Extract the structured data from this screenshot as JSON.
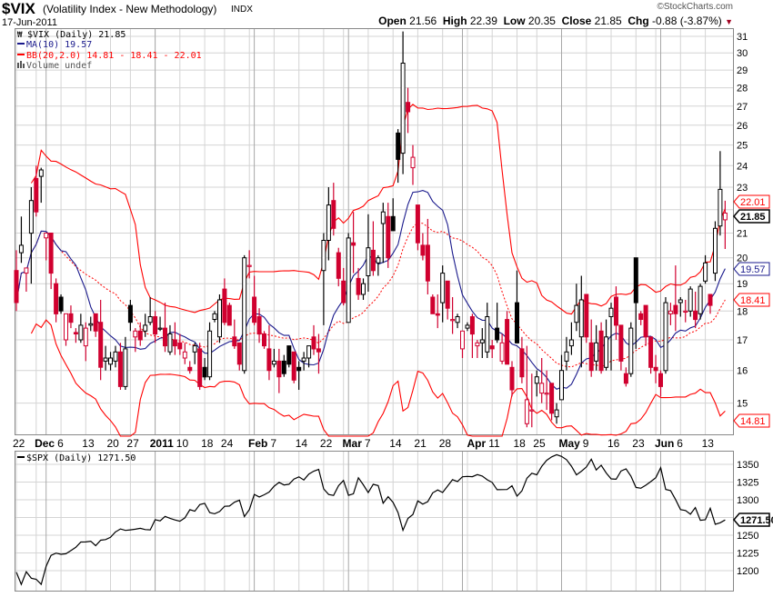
{
  "header": {
    "symbol": "$VIX",
    "description": "(Volatility Index - New Methodology)",
    "exchange": "INDX",
    "date": "17-Jun-2011",
    "copyright": "©StockCharts.com",
    "open_label": "Open",
    "open": "21.56",
    "high_label": "High",
    "high": "22.39",
    "low_label": "Low",
    "low": "20.35",
    "close_label": "Close",
    "close": "21.85",
    "chg_label": "Chg",
    "chg": "-0.88 (-3.87%)",
    "chg_arrow": "▼"
  },
  "legend": {
    "price": "$VIX (Daily) 21.85",
    "ma": "MA(10) 19.57",
    "bb": "BB(20,2.0) 14.81 - 18.41 - 22.01",
    "volume": "Volume undef",
    "spx": "$SPX (Daily) 1271.50"
  },
  "tags": {
    "close": "21.85",
    "bb_upper": "22.01",
    "ma": "19.57",
    "bb_mid": "18.41",
    "bb_lower": "14.81",
    "spx_close": "1271.50"
  },
  "colors": {
    "up": "#000000",
    "down": "#d0002f",
    "ma": "#1a1a8c",
    "bb": "#ff0000",
    "grid": "#d4d4d4",
    "grid_month": "#a8a8a8"
  },
  "chart_data": [
    {
      "type": "candlestick",
      "title": "$VIX (Daily)",
      "scale": "log",
      "ylim": [
        14.1,
        31.5
      ],
      "y_ticks": [
        31,
        30,
        29,
        28,
        27,
        26,
        25,
        24,
        23,
        21,
        20,
        19,
        18,
        17,
        16,
        15
      ],
      "y_grid": [
        15,
        16,
        17,
        18,
        19,
        20,
        21,
        22,
        23,
        24,
        25,
        26,
        27,
        28,
        29,
        30,
        31
      ],
      "indicators": {
        "ma_period": 10,
        "bb_period": 20,
        "bb_stddev": 2.0
      },
      "x_labels": [
        {
          "i": 0,
          "t": "22"
        },
        {
          "i": 6,
          "t": "Dec",
          "b": true
        },
        {
          "i": 9,
          "t": "6"
        },
        {
          "i": 14,
          "t": "13"
        },
        {
          "i": 19,
          "t": "20"
        },
        {
          "i": 23,
          "t": "27"
        },
        {
          "i": 28,
          "t": "2011",
          "b": true
        },
        {
          "i": 33,
          "t": "10"
        },
        {
          "i": 38,
          "t": "18"
        },
        {
          "i": 42,
          "t": "24"
        },
        {
          "i": 48,
          "t": "Feb",
          "b": true
        },
        {
          "i": 52,
          "t": "7"
        },
        {
          "i": 57,
          "t": "14"
        },
        {
          "i": 62,
          "t": "22"
        },
        {
          "i": 67,
          "t": "Mar",
          "b": true
        },
        {
          "i": 71,
          "t": "7"
        },
        {
          "i": 76,
          "t": "14"
        },
        {
          "i": 81,
          "t": "21"
        },
        {
          "i": 86,
          "t": "28"
        },
        {
          "i": 90,
          "t": "Apr",
          "b": true
        },
        {
          "i": 96,
          "t": "11"
        },
        {
          "i": 101,
          "t": "18"
        },
        {
          "i": 105,
          "t": "25"
        },
        {
          "i": 110,
          "t": "May",
          "b": true
        },
        {
          "i": 115,
          "t": "9"
        },
        {
          "i": 120,
          "t": "16"
        },
        {
          "i": 125,
          "t": "23"
        },
        {
          "i": 130,
          "t": "Jun",
          "b": true
        },
        {
          "i": 134,
          "t": "6"
        },
        {
          "i": 139,
          "t": "13"
        }
      ],
      "week_starts": [
        0,
        4,
        9,
        14,
        19,
        23,
        28,
        33,
        38,
        42,
        47,
        52,
        57,
        62,
        66,
        71,
        76,
        81,
        86,
        91,
        96,
        101,
        105,
        110,
        115,
        120,
        125,
        129,
        134,
        139
      ],
      "month_starts": [
        6,
        28,
        48,
        67,
        90,
        110,
        130
      ],
      "candles_ohlc": [
        [
          19.5,
          20.3,
          18.0,
          18.3
        ],
        [
          20.2,
          21.7,
          19.8,
          20.5
        ],
        [
          19.4,
          19.6,
          18.7,
          19.6
        ],
        [
          21.0,
          23.0,
          19.0,
          22.4
        ],
        [
          23.4,
          24.0,
          21.7,
          21.9
        ],
        [
          23.5,
          23.9,
          22.3,
          23.8
        ],
        [
          20.8,
          21.0,
          19.9,
          21.0
        ],
        [
          21.0,
          21.0,
          18.8,
          19.4
        ],
        [
          19.0,
          19.2,
          17.6,
          17.9
        ],
        [
          18.5,
          18.6,
          17.9,
          18.0
        ],
        [
          17.0,
          17.9,
          16.8,
          17.9
        ],
        [
          17.9,
          18.2,
          17.4,
          17.6
        ],
        [
          17.25,
          17.4,
          16.9,
          17.2
        ],
        [
          17.0,
          17.9,
          16.9,
          17.5
        ],
        [
          16.8,
          17.6,
          16.3,
          17.4
        ],
        [
          17.5,
          17.8,
          17.3,
          17.55
        ],
        [
          17.9,
          17.9,
          17.1,
          17.3
        ],
        [
          17.6,
          18.4,
          15.7,
          16.1
        ],
        [
          16.3,
          16.8,
          16.0,
          16.4
        ],
        [
          16.2,
          16.6,
          16.0,
          16.4
        ],
        [
          16.3,
          16.8,
          16.1,
          16.6
        ],
        [
          16.6,
          16.9,
          15.4,
          15.5
        ],
        [
          15.5,
          17.1,
          15.4,
          16.7
        ],
        [
          18.2,
          18.4,
          17.3,
          17.6
        ],
        [
          17.1,
          17.4,
          16.6,
          17.3
        ],
        [
          17.3,
          17.6,
          16.8,
          17.0
        ],
        [
          17.3,
          17.9,
          17.1,
          17.5
        ],
        [
          17.6,
          18.5,
          17.5,
          17.8
        ],
        [
          17.8,
          18.0,
          16.9,
          17.2
        ],
        [
          17.4,
          17.8,
          17.3,
          17.4
        ],
        [
          17.4,
          18.3,
          16.6,
          16.8
        ],
        [
          16.6,
          17.5,
          16.5,
          17.2
        ],
        [
          17.0,
          17.6,
          16.5,
          16.8
        ],
        [
          16.9,
          17.2,
          16.5,
          16.7
        ],
        [
          16.4,
          16.9,
          16.2,
          16.6
        ],
        [
          16.1,
          16.3,
          15.9,
          16.0
        ],
        [
          16.6,
          16.9,
          16.2,
          16.8
        ],
        [
          16.7,
          16.9,
          15.4,
          15.5
        ],
        [
          16.1,
          16.4,
          15.7,
          15.8
        ],
        [
          15.8,
          17.6,
          15.7,
          17.3
        ],
        [
          17.7,
          18.0,
          17.6,
          17.9
        ],
        [
          17.1,
          18.6,
          16.9,
          18.4
        ],
        [
          18.8,
          19.2,
          17.5,
          17.6
        ],
        [
          18.2,
          18.3,
          17.5,
          17.5
        ],
        [
          17.1,
          17.7,
          16.7,
          16.8
        ],
        [
          16.9,
          16.9,
          16.0,
          16.2
        ],
        [
          16.0,
          20.1,
          15.9,
          20.0
        ],
        [
          19.7,
          20.3,
          19.2,
          19.7
        ],
        [
          18.5,
          19.3,
          17.5,
          17.6
        ],
        [
          17.8,
          18.1,
          16.9,
          17.2
        ],
        [
          17.2,
          17.3,
          16.7,
          16.8
        ],
        [
          16.7,
          17.5,
          15.7,
          16.0
        ],
        [
          16.2,
          16.7,
          16.1,
          16.3
        ],
        [
          16.3,
          16.7,
          15.3,
          15.8
        ],
        [
          16.3,
          16.5,
          15.8,
          15.9
        ],
        [
          16.8,
          16.8,
          16.1,
          16.2
        ],
        [
          16.6,
          16.6,
          15.6,
          15.7
        ],
        [
          16.1,
          16.3,
          15.4,
          16.0
        ],
        [
          16.3,
          16.6,
          16.0,
          16.4
        ],
        [
          16.4,
          16.8,
          16.1,
          16.8
        ],
        [
          17.1,
          17.5,
          16.5,
          16.7
        ],
        [
          16.7,
          17.2,
          15.9,
          16.6
        ],
        [
          19.5,
          21.0,
          17.5,
          20.7
        ],
        [
          20.7,
          23.0,
          19.9,
          22.2
        ],
        [
          22.4,
          23.2,
          20.9,
          21.2
        ],
        [
          20.2,
          20.4,
          18.9,
          19.2
        ],
        [
          19.1,
          19.6,
          18.2,
          18.3
        ],
        [
          17.6,
          21.0,
          17.6,
          20.8
        ],
        [
          20.6,
          21.9,
          19.4,
          20.5
        ],
        [
          19.2,
          19.6,
          18.4,
          18.6
        ],
        [
          18.6,
          19.2,
          18.4,
          19.0
        ],
        [
          19.3,
          21.8,
          18.7,
          20.4
        ],
        [
          20.3,
          21.5,
          19.3,
          19.5
        ],
        [
          19.8,
          20.1,
          19.3,
          20.0
        ],
        [
          21.4,
          22.3,
          19.8,
          21.9
        ],
        [
          21.7,
          22.3,
          19.6,
          20.0
        ],
        [
          21.7,
          22.5,
          21.1,
          21.1
        ],
        [
          25.6,
          25.8,
          23.2,
          24.3
        ],
        [
          24.6,
          31.3,
          23.6,
          29.4
        ],
        [
          27.2,
          28.0,
          25.6,
          26.7
        ],
        [
          23.9,
          25.0,
          23.1,
          24.4
        ],
        [
          22.2,
          22.2,
          20.3,
          20.6
        ],
        [
          20.5,
          21.0,
          19.9,
          20.1
        ],
        [
          20.5,
          21.6,
          18.6,
          19.1
        ],
        [
          18.5,
          18.6,
          17.9,
          17.9
        ],
        [
          17.9,
          18.6,
          17.4,
          17.85
        ],
        [
          18.3,
          19.7,
          17.6,
          19.4
        ],
        [
          19.1,
          19.1,
          17.7,
          18.1
        ],
        [
          17.7,
          18.5,
          17.2,
          17.7
        ],
        [
          17.6,
          17.9,
          17.4,
          17.8
        ],
        [
          16.7,
          17.3,
          16.4,
          17.3
        ],
        [
          17.4,
          17.6,
          17.3,
          17.5
        ],
        [
          17.8,
          17.9,
          16.4,
          17.2
        ],
        [
          16.8,
          17.0,
          16.4,
          16.9
        ],
        [
          16.9,
          17.4,
          16.4,
          17.0
        ],
        [
          16.6,
          18.3,
          16.4,
          17.8
        ],
        [
          16.8,
          17.0,
          16.4,
          16.7
        ],
        [
          17.4,
          18.3,
          16.9,
          17.0
        ],
        [
          16.3,
          17.2,
          16.2,
          16.9
        ],
        [
          17.7,
          18.0,
          16.2,
          16.2
        ],
        [
          16.1,
          16.3,
          15.2,
          15.4
        ],
        [
          18.3,
          19.5,
          16.9,
          16.9
        ],
        [
          16.7,
          17.1,
          15.6,
          15.8
        ],
        [
          14.4,
          16.8,
          14.3,
          15.1
        ],
        [
          14.8,
          15.9,
          14.3,
          14.8
        ],
        [
          15.6,
          16.0,
          15.2,
          15.8
        ],
        [
          15.3,
          16.4,
          15.0,
          15.6
        ],
        [
          15.3,
          16.0,
          14.8,
          15.3
        ],
        [
          15.6,
          15.6,
          14.5,
          14.7
        ],
        [
          14.6,
          15.0,
          14.4,
          14.8
        ],
        [
          15.1,
          16.5,
          15.1,
          16.0
        ],
        [
          16.3,
          17.1,
          16.0,
          16.6
        ],
        [
          16.8,
          17.6,
          16.5,
          17.0
        ],
        [
          17.6,
          19.0,
          17.3,
          18.2
        ],
        [
          17.1,
          19.3,
          16.1,
          18.4
        ],
        [
          18.6,
          18.6,
          16.9,
          17.1
        ],
        [
          16.9,
          17.7,
          15.8,
          16.0
        ],
        [
          16.3,
          17.5,
          16.0,
          16.9
        ],
        [
          17.3,
          17.6,
          15.9,
          16.0
        ],
        [
          16.1,
          17.7,
          16.0,
          17.1
        ],
        [
          17.8,
          18.3,
          16.0,
          18.1
        ],
        [
          18.5,
          18.9,
          17.0,
          17.5
        ],
        [
          17.5,
          17.5,
          16.0,
          16.3
        ],
        [
          15.9,
          16.1,
          15.5,
          15.6
        ],
        [
          15.9,
          17.6,
          15.8,
          17.4
        ],
        [
          20.0,
          20.0,
          16.7,
          18.3
        ],
        [
          17.9,
          18.0,
          17.5,
          17.7
        ],
        [
          18.2,
          18.2,
          16.8,
          17.1
        ],
        [
          17.1,
          17.1,
          15.9,
          16.1
        ],
        [
          16.1,
          16.5,
          15.6,
          16.0
        ],
        [
          15.9,
          16.0,
          15.2,
          15.5
        ],
        [
          16.0,
          18.5,
          15.9,
          18.3
        ],
        [
          17.9,
          18.3,
          17.5,
          18.0
        ],
        [
          18.2,
          19.7,
          17.3,
          17.9
        ],
        [
          18.3,
          18.5,
          17.8,
          18.4
        ],
        [
          18.0,
          18.4,
          17.6,
          18.0
        ],
        [
          18.0,
          18.9,
          17.8,
          18.8
        ],
        [
          18.0,
          18.7,
          17.4,
          17.7
        ],
        [
          17.9,
          19.0,
          17.7,
          18.9
        ],
        [
          19.1,
          20.1,
          19.0,
          19.8
        ],
        [
          18.6,
          18.6,
          17.9,
          18.2
        ],
        [
          19.4,
          21.5,
          19.1,
          21.2
        ],
        [
          21.3,
          24.7,
          20.9,
          22.9
        ],
        [
          21.56,
          22.39,
          20.35,
          21.85
        ]
      ]
    },
    {
      "type": "line",
      "title": "$SPX (Daily)",
      "ylim": [
        1180,
        1372
      ],
      "y_ticks": [
        1350,
        1325,
        1300,
        1250,
        1225,
        1200
      ],
      "y_grid": [
        1200,
        1225,
        1250,
        1275,
        1300,
        1325,
        1350
      ],
      "values": [
        1197.8,
        1180.7,
        1198.4,
        1189.4,
        1187.8,
        1180.6,
        1206.1,
        1221.5,
        1224.7,
        1223.1,
        1223.8,
        1228.3,
        1233.0,
        1240.4,
        1240.5,
        1241.6,
        1235.2,
        1242.9,
        1243.9,
        1247.1,
        1254.6,
        1258.8,
        1256.8,
        1257.5,
        1258.5,
        1259.8,
        1257.9,
        1257.6,
        1271.9,
        1270.2,
        1276.6,
        1273.9,
        1271.5,
        1269.8,
        1274.5,
        1286.0,
        1283.8,
        1293.2,
        1295.0,
        1281.9,
        1280.3,
        1283.4,
        1290.8,
        1291.2,
        1296.6,
        1299.5,
        1276.3,
        1286.1,
        1307.6,
        1304.0,
        1307.1,
        1310.9,
        1319.1,
        1324.6,
        1320.9,
        1321.9,
        1329.2,
        1332.3,
        1328.0,
        1336.3,
        1340.4,
        1343.0,
        1315.4,
        1307.4,
        1306.1,
        1319.9,
        1327.2,
        1306.3,
        1308.4,
        1331.0,
        1321.2,
        1310.1,
        1321.8,
        1320.0,
        1295.1,
        1304.3,
        1296.4,
        1281.9,
        1256.9,
        1273.7,
        1279.2,
        1298.4,
        1293.8,
        1297.5,
        1309.7,
        1313.8,
        1310.2,
        1319.4,
        1328.3,
        1325.8,
        1332.4,
        1332.9,
        1332.6,
        1335.5,
        1333.5,
        1328.2,
        1324.5,
        1314.2,
        1314.4,
        1314.5,
        1319.7,
        1305.1,
        1312.6,
        1330.4,
        1337.4,
        1335.3,
        1347.2,
        1355.7,
        1360.5,
        1363.6,
        1361.2,
        1356.6,
        1347.3,
        1335.1,
        1340.2,
        1346.3,
        1357.2,
        1342.1,
        1348.7,
        1337.8,
        1329.5,
        1329.0,
        1340.7,
        1343.6,
        1333.3,
        1317.4,
        1316.3,
        1320.5,
        1325.7,
        1331.1,
        1345.2,
        1314.6,
        1312.9,
        1300.2,
        1286.1,
        1284.9,
        1279.6,
        1289.0,
        1271.0,
        1271.8,
        1287.9,
        1265.4,
        1267.6,
        1271.5
      ]
    }
  ]
}
